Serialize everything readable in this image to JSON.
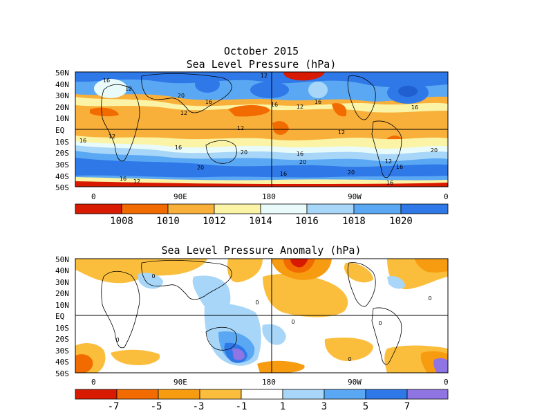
{
  "figure_title": "October 2015",
  "colors": {
    "slp_scale": [
      "#d71a00",
      "#f26b00",
      "#f8b03a",
      "#fbf3a6",
      "#e8fbfa",
      "#a7d6f8",
      "#5aa8f3",
      "#2f78e8"
    ],
    "anom_scale": [
      "#d71a00",
      "#f26b00",
      "#f79b11",
      "#fbbe3c",
      "#ffffff",
      "#a7d6f8",
      "#5aa8f3",
      "#2f78e8",
      "#8f74e4"
    ],
    "land_outline": "#000000"
  },
  "panels": [
    {
      "title": "Sea Level Pressure (hPa)",
      "x_ticks": [
        "0",
        "90E",
        "180",
        "90W",
        "0"
      ],
      "y_ticks": [
        "50N",
        "40N",
        "30N",
        "20N",
        "10N",
        "EQ",
        "10S",
        "20S",
        "30S",
        "40S",
        "50S"
      ],
      "contour_labels": [
        "16",
        "12",
        "20",
        "16",
        "16",
        "16",
        "12",
        "12",
        "12",
        "12",
        "16",
        "12",
        "16",
        "16",
        "20",
        "20",
        "20",
        "16",
        "16",
        "20",
        "12",
        "12",
        "16",
        "20",
        "16",
        "16",
        "12"
      ],
      "colorbar_labels": [
        "1008",
        "1010",
        "1012",
        "1014",
        "1016",
        "1018",
        "1020"
      ]
    },
    {
      "title": "Sea Level Pressure Anomaly (hPa)",
      "x_ticks": [
        "0",
        "90E",
        "180",
        "90W",
        "0"
      ],
      "y_ticks": [
        "50N",
        "40N",
        "30N",
        "20N",
        "10N",
        "EQ",
        "10S",
        "20S",
        "30S",
        "40S",
        "50S"
      ],
      "contour_labels": [
        "0",
        "0",
        "0",
        "0",
        "0",
        "0",
        "0"
      ],
      "colorbar_labels": [
        "-7",
        "-5",
        "-3",
        "-1",
        "1",
        "3",
        "5",
        "7"
      ]
    }
  ]
}
